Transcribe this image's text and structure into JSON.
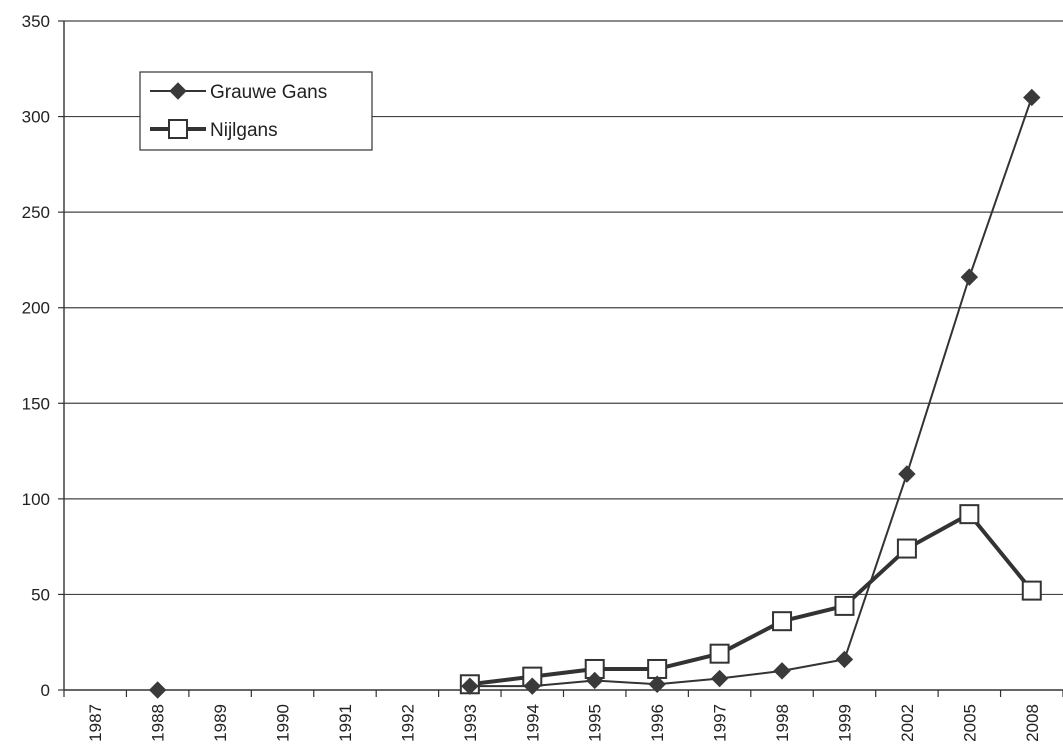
{
  "chart_data": {
    "type": "line",
    "title": "",
    "xlabel": "",
    "ylabel": "",
    "categories": [
      "1987",
      "1988",
      "1989",
      "1990",
      "1991",
      "1992",
      "1993",
      "1994",
      "1995",
      "1996",
      "1997",
      "1998",
      "1999",
      "2002",
      "2005",
      "2008"
    ],
    "ylim": [
      0,
      350
    ],
    "yticks": [
      0,
      50,
      100,
      150,
      200,
      250,
      300,
      350
    ],
    "yticks_labels": [
      "0",
      "50",
      "100",
      "150",
      "200",
      "250",
      "300",
      "350"
    ],
    "grid": "horizontal",
    "legend_position": "top-left",
    "series": [
      {
        "name": "Grauwe Gans",
        "marker": "diamond",
        "color": "#333333",
        "values": [
          null,
          0,
          null,
          null,
          null,
          null,
          2,
          2,
          5,
          3,
          6,
          10,
          16,
          113,
          216,
          310
        ]
      },
      {
        "name": "Nijlgans",
        "marker": "square-open",
        "color": "#333333",
        "values": [
          null,
          null,
          null,
          null,
          null,
          null,
          3,
          7,
          11,
          11,
          19,
          36,
          44,
          74,
          92,
          52
        ]
      }
    ]
  }
}
